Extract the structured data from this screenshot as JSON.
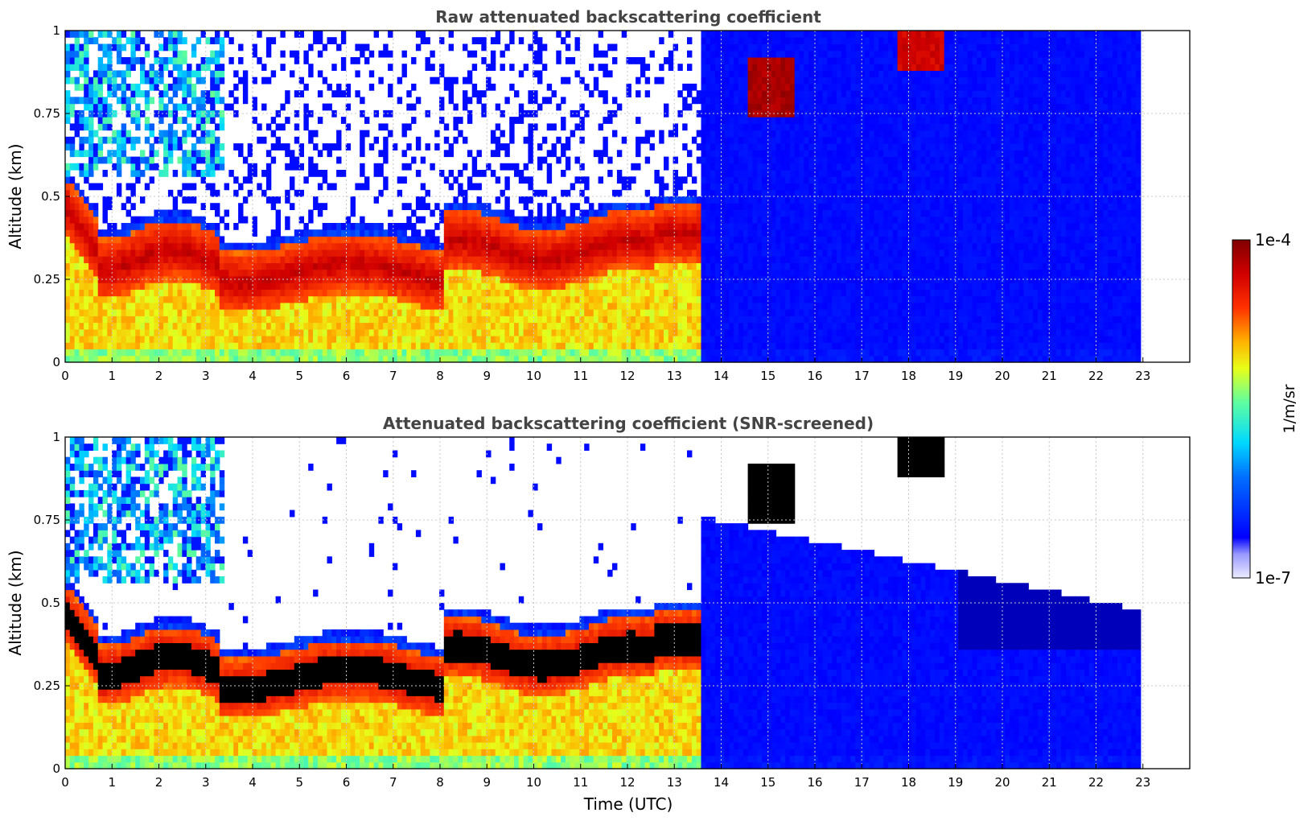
{
  "chart_data": [
    {
      "type": "heatmap",
      "title": "Raw attenuated backscattering coefficient",
      "xlabel": "",
      "ylabel": "Altitude (km)",
      "xlim": [
        0,
        24
      ],
      "ylim": [
        0,
        1
      ],
      "xticks": [
        0,
        1,
        2,
        3,
        4,
        5,
        6,
        7,
        8,
        9,
        10,
        11,
        12,
        13,
        14,
        15,
        16,
        17,
        18,
        19,
        20,
        21,
        22,
        23
      ],
      "yticks": [
        0,
        0.25,
        0.5,
        0.75,
        1
      ],
      "ytick_labels": [
        "0",
        "0.25",
        "0.5",
        "0.75",
        "1"
      ],
      "grid": true,
      "data_extent_hours": [
        0,
        22.95
      ],
      "screened": false
    },
    {
      "type": "heatmap",
      "title": "Attenuated backscattering coefficient (SNR-screened)",
      "xlabel": "Time (UTC)",
      "ylabel": "Altitude (km)",
      "xlim": [
        0,
        24
      ],
      "ylim": [
        0,
        1
      ],
      "xticks": [
        0,
        1,
        2,
        3,
        4,
        5,
        6,
        7,
        8,
        9,
        10,
        11,
        12,
        13,
        14,
        15,
        16,
        17,
        18,
        19,
        20,
        21,
        22,
        23
      ],
      "yticks": [
        0,
        0.25,
        0.5,
        0.75,
        1
      ],
      "ytick_labels": [
        "0",
        "0.25",
        "0.5",
        "0.75",
        "1"
      ],
      "grid": true,
      "data_extent_hours": [
        0,
        22.95
      ],
      "screened": true
    }
  ],
  "colorbar": {
    "max_label": "1e-4",
    "min_label": "1e-7",
    "label": "1/m/sr",
    "scale": "log",
    "colormap": "jet"
  },
  "colors": {
    "title": "#444444",
    "grid": "#c8c8c8",
    "saturated": "#000000"
  }
}
